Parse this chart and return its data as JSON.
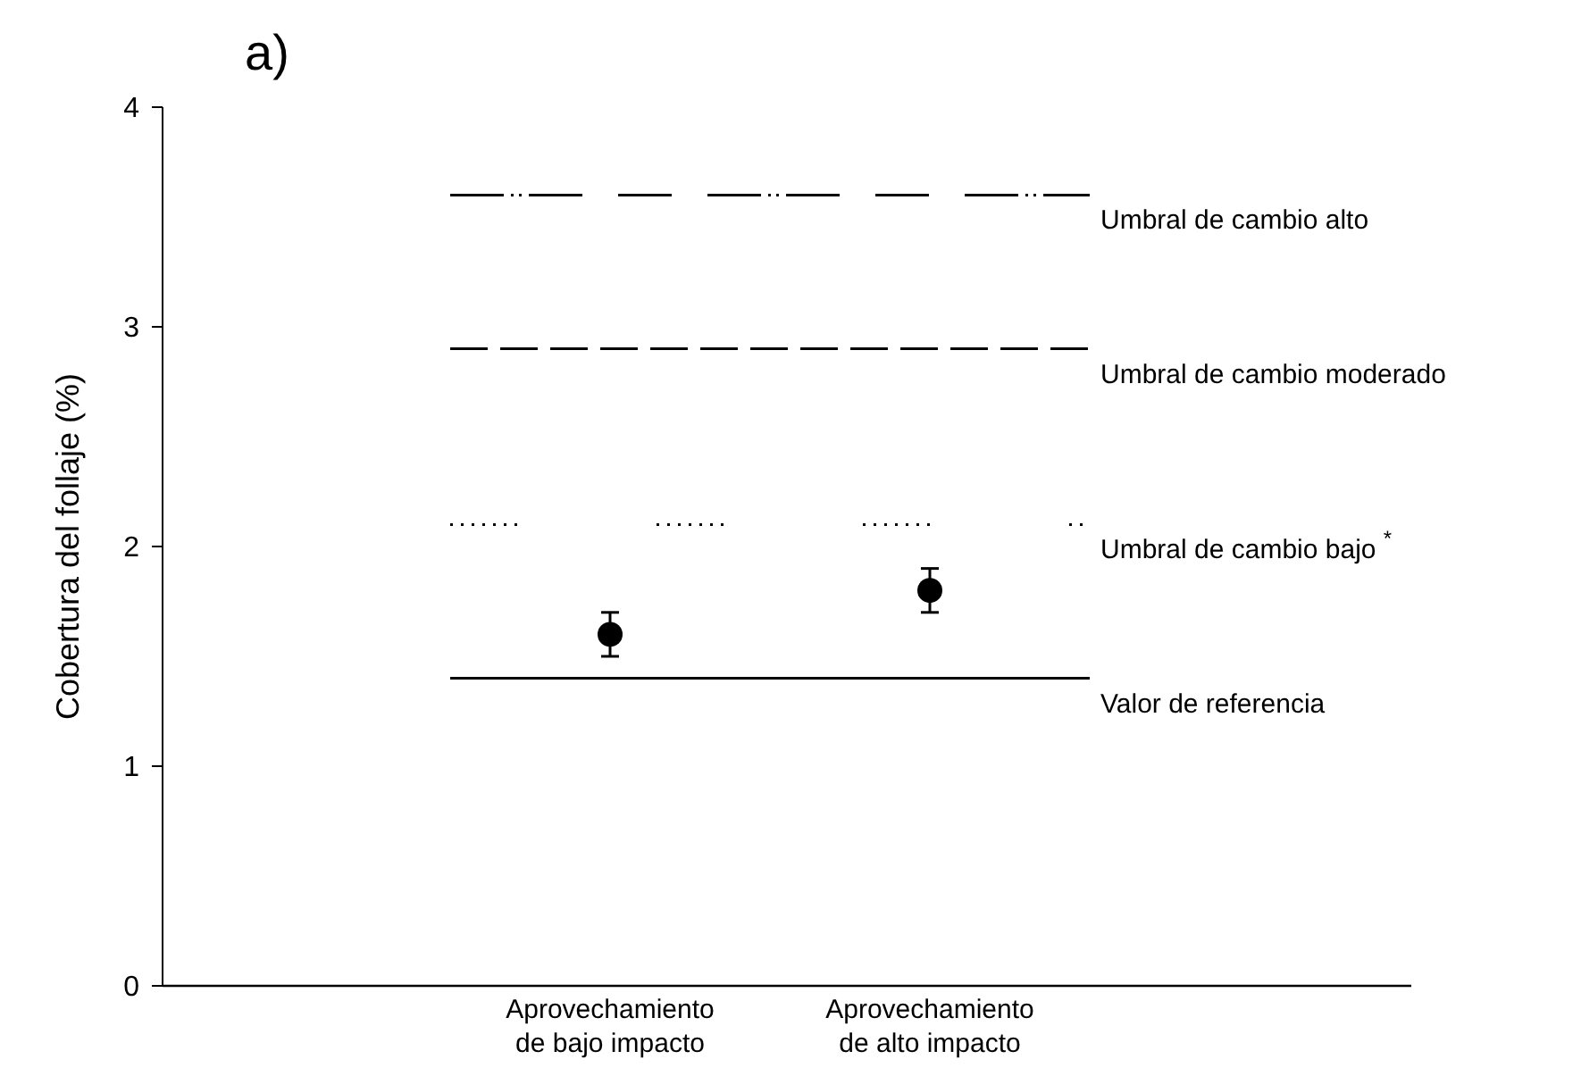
{
  "chart_data": {
    "type": "scatter",
    "title": "a)",
    "ylabel": "Cobertura del follaje (%)",
    "categories": [
      "Aprovechamiento de bajo impacto",
      "Aprovechamiento de alto impacto"
    ],
    "values": [
      1.6,
      1.8
    ],
    "errors": [
      0.1,
      0.1
    ],
    "color": "#000000",
    "marker": "circle",
    "ylim": [
      0,
      4
    ],
    "yticks": [
      0,
      1,
      2,
      3,
      4
    ],
    "ref_lines": [
      {
        "axis": "y",
        "value": 3.6,
        "label": "Umbral de cambio alto",
        "line_style": "dashdot",
        "color": "#000000"
      },
      {
        "axis": "y",
        "value": 2.9,
        "label": "Umbral de cambio moderado",
        "line_style": "dashed",
        "color": "#000000"
      },
      {
        "axis": "y",
        "value": 2.1,
        "label": "Umbral de cambio bajo $^{*}$",
        "line_style": "dotted",
        "color": "#000000"
      },
      {
        "axis": "y",
        "value": 1.4,
        "label": "Valor de referencia",
        "line_style": "solid",
        "color": "#000000"
      }
    ]
  }
}
